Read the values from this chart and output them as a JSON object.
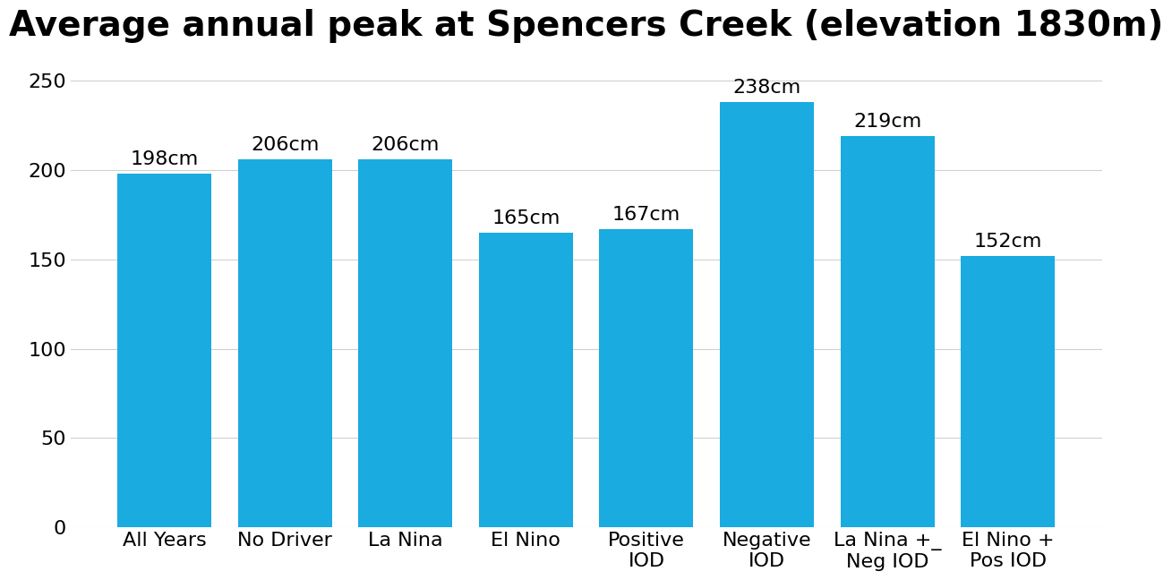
{
  "title": "Average annual peak at Spencers Creek (elevation 1830m)",
  "categories": [
    "All Years",
    "No Driver",
    "La Nina",
    "El Nino",
    "Positive\nIOD",
    "Negative\nIOD",
    "La Nina +_\nNeg IOD",
    "El Nino +\nPos IOD"
  ],
  "values": [
    198,
    206,
    206,
    165,
    167,
    238,
    219,
    152
  ],
  "labels": [
    "198cm",
    "206cm",
    "206cm",
    "165cm",
    "167cm",
    "238cm",
    "219cm",
    "152cm"
  ],
  "bar_color": "#1AABE0",
  "background_color": "#ffffff",
  "ylim": [
    0,
    260
  ],
  "yticks": [
    0,
    50,
    100,
    150,
    200,
    250
  ],
  "title_fontsize": 28,
  "tick_fontsize": 16,
  "label_fontsize": 16,
  "bar_width": 0.78
}
